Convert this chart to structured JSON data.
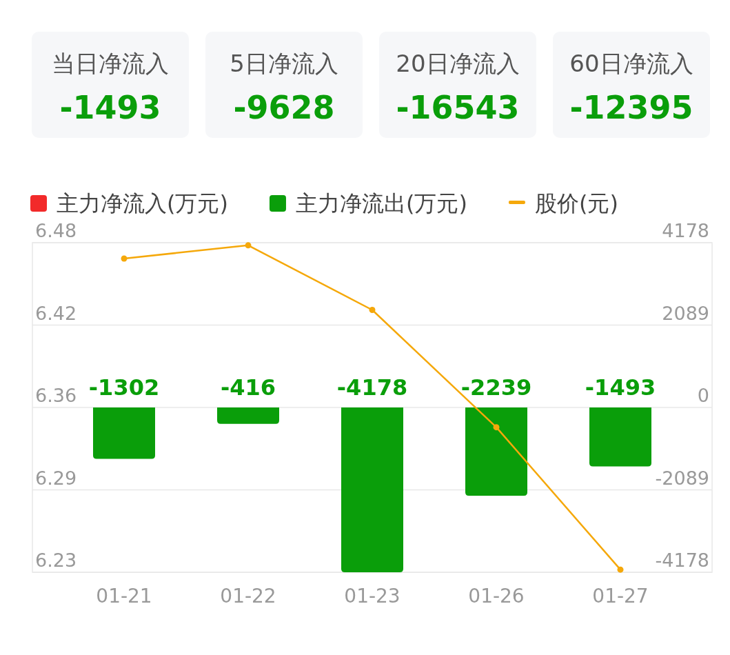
{
  "chart_data": [
    {
      "type": "other",
      "categories": [
        "当日净流入",
        "5日净流入",
        "20日净流入",
        "60日净流入"
      ],
      "values": [
        -1493,
        -9628,
        -16543,
        -12395
      ],
      "data_labels": true
    },
    {
      "type": "bar",
      "categories": [
        "01-21",
        "01-22",
        "01-23",
        "01-26",
        "01-27"
      ],
      "series": [
        {
          "name": "主力净流入(万元)",
          "type": "bar",
          "axis": "y2",
          "color": "#f22a2a",
          "values": [
            null,
            null,
            null,
            null,
            null
          ]
        },
        {
          "name": "主力净流出(万元)",
          "type": "bar",
          "axis": "y2",
          "color": "#0a9e0a",
          "values": [
            -1302,
            -416,
            -4178,
            -2239,
            -1493
          ],
          "data_labels": true
        },
        {
          "name": "股价(元)",
          "type": "line",
          "color": "#f5a80a",
          "marker": "circle",
          "values": [
            6.468,
            6.478,
            6.429,
            6.34,
            6.232
          ]
        }
      ],
      "ylim": [
        6.23,
        6.48
      ],
      "yticks": [
        6.23,
        {
          "value": 6.2925,
          "label": "6.29"
        },
        {
          "value": 6.355,
          "label": "6.36"
        },
        {
          "value": 6.4175,
          "label": "6.42"
        },
        6.48
      ],
      "y2lim": [
        -4178,
        4178
      ],
      "y2ticks": [
        -4178,
        -2089,
        0,
        2089,
        4178
      ],
      "grid": "y",
      "legend": "top"
    }
  ]
}
